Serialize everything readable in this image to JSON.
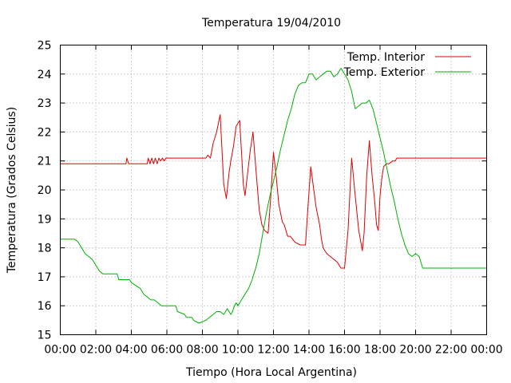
{
  "chart_data": {
    "type": "line",
    "title": "Temperatura 19/04/2010",
    "xlabel": "Tiempo (Hora Local Argentina)",
    "ylabel": "Temperatura (Grados Celsius)",
    "xlim": [
      0,
      24
    ],
    "ylim": [
      15,
      25
    ],
    "x_tick_labels": [
      "00:00",
      "02:00",
      "04:00",
      "06:00",
      "08:00",
      "10:00",
      "12:00",
      "14:00",
      "16:00",
      "18:00",
      "20:00",
      "22:00",
      "00:00"
    ],
    "y_tick_labels": [
      "15",
      "16",
      "17",
      "18",
      "19",
      "20",
      "21",
      "22",
      "23",
      "24",
      "25"
    ],
    "grid": true,
    "legend_position": "top-right",
    "x_unit": "hours",
    "series": [
      {
        "name": "Temp. Interior",
        "color": "#e00000",
        "x": [
          0,
          3.7,
          3.75,
          3.85,
          4,
          4.9,
          4.95,
          5.05,
          5.15,
          5.25,
          5.35,
          5.45,
          5.55,
          5.65,
          5.75,
          5.85,
          5.95,
          6.0,
          6.1,
          8.2,
          8.3,
          8.45,
          8.6,
          8.8,
          9.0,
          9.2,
          9.35,
          9.5,
          9.6,
          9.75,
          9.9,
          10.1,
          10.3,
          10.4,
          10.55,
          10.7,
          10.85,
          11.05,
          11.2,
          11.35,
          11.5,
          11.7,
          11.85,
          12.0,
          12.15,
          12.3,
          12.4,
          12.5,
          12.6,
          12.7,
          12.8,
          12.95,
          13.2,
          13.5,
          13.8,
          13.95,
          14.1,
          14.4,
          14.6,
          14.7,
          14.8,
          14.9,
          15.0,
          15.2,
          15.4,
          15.6,
          15.8,
          16.0,
          16.2,
          16.4,
          16.6,
          16.8,
          17.0,
          17.1,
          17.25,
          17.4,
          17.55,
          17.7,
          17.8,
          17.9,
          18.0,
          18.1,
          18.2,
          18.35,
          18.5,
          18.7,
          18.85,
          18.95,
          19.1,
          19.3,
          19.5,
          19.7,
          19.85,
          20.0,
          20.3,
          20.4,
          20.5,
          21.0,
          22.0,
          24.0
        ],
        "y": [
          20.9,
          20.9,
          21.1,
          20.9,
          20.9,
          20.9,
          21.1,
          20.9,
          21.1,
          20.9,
          21.1,
          20.9,
          21.1,
          21.0,
          21.1,
          21.0,
          21.1,
          21.1,
          21.1,
          21.1,
          21.2,
          21.1,
          21.6,
          22.0,
          22.6,
          20.2,
          19.7,
          20.6,
          21.0,
          21.5,
          22.2,
          22.4,
          20.2,
          19.8,
          20.6,
          21.4,
          22.0,
          20.4,
          19.3,
          18.8,
          18.6,
          18.5,
          19.8,
          21.3,
          20.5,
          19.5,
          19.2,
          18.9,
          18.8,
          18.6,
          18.4,
          18.4,
          18.2,
          18.1,
          18.1,
          19.5,
          20.8,
          19.4,
          18.8,
          18.3,
          18.0,
          17.9,
          17.8,
          17.7,
          17.6,
          17.5,
          17.3,
          17.3,
          18.6,
          21.1,
          19.8,
          18.6,
          17.9,
          18.5,
          20.5,
          21.7,
          20.5,
          19.6,
          18.8,
          18.6,
          19.8,
          20.4,
          20.8,
          20.9,
          20.9,
          21.0,
          21.0,
          21.1,
          21.1,
          21.1,
          21.1,
          21.1,
          21.1,
          21.1,
          21.1,
          21.1,
          21.1,
          21.1,
          21.1,
          21.1
        ],
        "markers": false
      },
      {
        "name": "Temp. Exterior",
        "color": "#00b000",
        "x": [
          0,
          0.8,
          1.0,
          1.2,
          1.4,
          1.6,
          1.8,
          2.0,
          2.2,
          2.4,
          2.6,
          3.2,
          3.3,
          3.9,
          4.0,
          4.5,
          4.7,
          4.9,
          5.1,
          5.3,
          5.5,
          5.7,
          5.9,
          6.0,
          6.5,
          6.6,
          7.0,
          7.1,
          7.4,
          7.5,
          7.8,
          8.2,
          8.4,
          8.6,
          8.8,
          9.0,
          9.2,
          9.3,
          9.4,
          9.5,
          9.6,
          9.7,
          9.8,
          9.9,
          10.0,
          10.2,
          10.4,
          10.6,
          10.8,
          11.0,
          11.2,
          11.4,
          11.6,
          11.8,
          12.0,
          12.2,
          12.4,
          12.6,
          12.8,
          13.0,
          13.2,
          13.4,
          13.6,
          13.8,
          14.0,
          14.2,
          14.4,
          14.6,
          14.8,
          15.0,
          15.2,
          15.4,
          15.6,
          15.8,
          16.0,
          16.2,
          16.4,
          16.6,
          16.8,
          17.0,
          17.2,
          17.4,
          17.6,
          17.8,
          18.0,
          18.2,
          18.4,
          18.6,
          18.8,
          19.0,
          19.2,
          19.4,
          19.6,
          19.8,
          20.0,
          20.2,
          20.4,
          20.6,
          21.0,
          22.0,
          24.0
        ],
        "y": [
          18.3,
          18.3,
          18.2,
          18.0,
          17.8,
          17.7,
          17.6,
          17.4,
          17.2,
          17.1,
          17.1,
          17.1,
          16.9,
          16.9,
          16.8,
          16.6,
          16.4,
          16.3,
          16.2,
          16.2,
          16.1,
          16.0,
          16.0,
          16.0,
          16.0,
          15.8,
          15.7,
          15.6,
          15.6,
          15.5,
          15.4,
          15.5,
          15.6,
          15.7,
          15.8,
          15.8,
          15.7,
          15.8,
          15.9,
          15.8,
          15.7,
          15.8,
          16.0,
          16.1,
          16.0,
          16.2,
          16.4,
          16.6,
          16.9,
          17.3,
          17.8,
          18.5,
          19.2,
          19.8,
          20.3,
          20.8,
          21.4,
          21.9,
          22.4,
          22.8,
          23.3,
          23.6,
          23.7,
          23.7,
          24.0,
          24.0,
          23.8,
          23.9,
          24.0,
          24.1,
          24.1,
          23.9,
          24.0,
          24.2,
          24.0,
          23.8,
          23.4,
          22.8,
          22.9,
          23.0,
          23.0,
          23.1,
          22.8,
          22.3,
          21.8,
          21.3,
          20.7,
          20.1,
          19.6,
          19.0,
          18.5,
          18.1,
          17.8,
          17.7,
          17.8,
          17.7,
          17.3,
          17.3,
          17.3,
          17.3,
          17.3
        ],
        "markers": false
      }
    ]
  }
}
